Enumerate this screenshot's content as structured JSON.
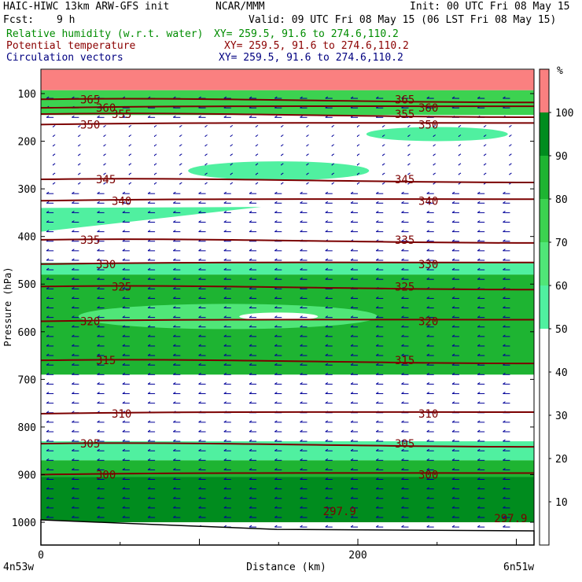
{
  "header": {
    "title": "HAIC-HIWC 13km ARW-GFS init",
    "center": "NCAR/MMM",
    "init": "Init: 00 UTC Fri 08 May 15",
    "fcst_label": "Fcst:",
    "fcst_value": "9 h",
    "valid": "Valid: 09 UTC Fri 08 May 15 (06 LST Fri 08 May 15)",
    "field1": "Relative humidity (w.r.t. water)",
    "field1_xy": "XY= 259.5, 91.6 to 274.6,110.2",
    "field2": "Potential temperature",
    "field2_xy": "XY= 259.5, 91.6 to 274.6,110.2",
    "field3": "Circulation vectors",
    "field3_xy": "XY= 259.5, 91.6 to 274.6,110.2"
  },
  "colors": {
    "text_black": "#000000",
    "text_green": "#008c00",
    "text_red": "#8b0000",
    "text_navy": "#000080",
    "contour": "#7b0000",
    "vector": "#000099",
    "terrain": "#000000"
  },
  "chart_data": {
    "type": "heatmap",
    "xlabel": "Distance (km)",
    "ylabel": "Pressure (hPa)",
    "x_ticks": [
      "0",
      "200"
    ],
    "x_tick_values": [
      0,
      200
    ],
    "xlim": [
      0,
      310
    ],
    "ylim": [
      1050,
      50
    ],
    "y_ticks": [
      100,
      200,
      300,
      400,
      500,
      600,
      700,
      800,
      900,
      1000
    ],
    "endpoints": {
      "left": "4n53w",
      "right": "6n51w"
    },
    "colorbar": {
      "unit": "%",
      "labels": [
        "10",
        "20",
        "30",
        "40",
        "50",
        "60",
        "70",
        "80",
        "90",
        "100"
      ],
      "bins": [
        {
          "from": 0,
          "to": 50,
          "color": "#ffffff"
        },
        {
          "from": 50,
          "to": 60,
          "color": "#50f0a0"
        },
        {
          "from": 60,
          "to": 70,
          "color": "#50e678"
        },
        {
          "from": 70,
          "to": 80,
          "color": "#3cd250"
        },
        {
          "from": 80,
          "to": 90,
          "color": "#1eb432"
        },
        {
          "from": 90,
          "to": 100,
          "color": "#008c1e"
        },
        {
          "from": 100,
          "to": 110,
          "color": "#fa8080"
        }
      ]
    },
    "rh_layers": [
      {
        "p_top": 50,
        "p_bot": 93,
        "rh": 105
      },
      {
        "p_top": 93,
        "p_bot": 145,
        "rh": 75
      },
      {
        "p_top": 200,
        "p_bot": 455,
        "rh": 20
      },
      {
        "p_top": 455,
        "p_bot": 480,
        "rh": 55
      },
      {
        "p_top": 480,
        "p_bot": 690,
        "rh": 80
      },
      {
        "p_top": 830,
        "p_bot": 870,
        "rh": 55
      },
      {
        "p_top": 870,
        "p_bot": 905,
        "rh": 80
      },
      {
        "p_top": 905,
        "p_bot": 1000,
        "rh": 95
      }
    ],
    "theta_contours": [
      {
        "label": "365",
        "p": 112
      },
      {
        "label": "360",
        "p": 130
      },
      {
        "label": "355",
        "p": 143
      },
      {
        "label": "350",
        "p": 165
      },
      {
        "label": "345",
        "p": 280
      },
      {
        "label": "340",
        "p": 325
      },
      {
        "label": "335",
        "p": 407
      },
      {
        "label": "330",
        "p": 458
      },
      {
        "label": "325",
        "p": 505
      },
      {
        "label": "320",
        "p": 578
      },
      {
        "label": "315",
        "p": 660
      },
      {
        "label": "310",
        "p": 772
      },
      {
        "label": "305",
        "p": 835
      },
      {
        "label": "300",
        "p": 900
      }
    ],
    "annotations": [
      {
        "label": "297.9",
        "x": 178,
        "p": 985
      },
      {
        "label": "297.9",
        "x": 286,
        "p": 1000
      }
    ]
  }
}
